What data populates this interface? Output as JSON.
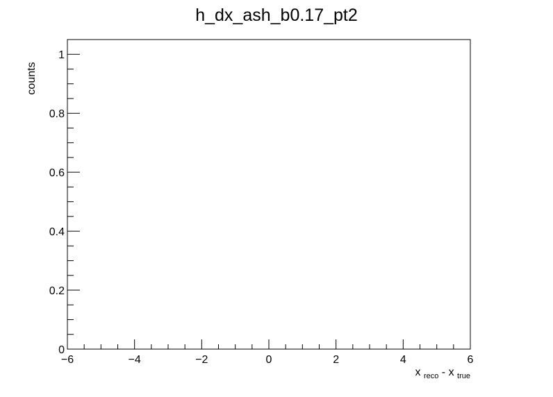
{
  "chart_data": {
    "type": "bar",
    "title": "h_dx_ash_b0.17_pt2",
    "xlabel": {
      "base1": "x",
      "sub1": "reco",
      "sep": "-",
      "base2": "x",
      "sub2": "true"
    },
    "ylabel": "counts",
    "xlim": [
      -6,
      6
    ],
    "ylim": [
      0,
      1.05
    ],
    "x_ticks": [
      "−6",
      "−4",
      "−2",
      "0",
      "2",
      "4",
      "6"
    ],
    "y_ticks": [
      "0",
      "0.2",
      "0.4",
      "0.6",
      "0.8",
      "1"
    ],
    "x_tick_values": [
      -6,
      -4,
      -2,
      0,
      2,
      4,
      6
    ],
    "y_tick_values": [
      0,
      0.2,
      0.4,
      0.6,
      0.8,
      1
    ],
    "x_minor_step": 0.5,
    "y_minor_step": 0.05,
    "series": [],
    "grid": false
  }
}
